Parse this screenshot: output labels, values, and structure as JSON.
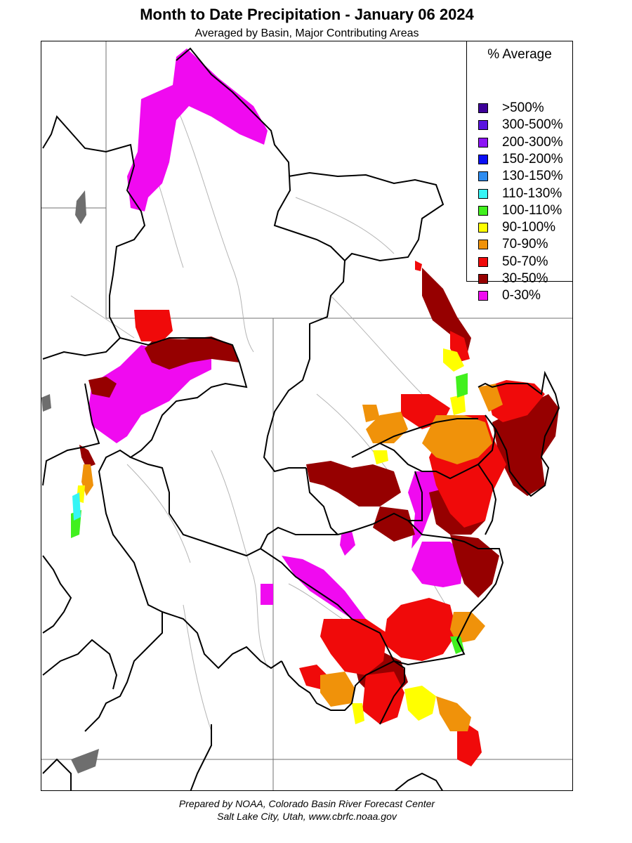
{
  "title": "Month to Date Precipitation - January 06 2024",
  "subtitle": "Averaged by Basin, Major Contributing Areas",
  "legend": {
    "title": "% Average",
    "items": [
      {
        "label": ">500%",
        "color": "#3d0099"
      },
      {
        "label": "300-500%",
        "color": "#5a14e0"
      },
      {
        "label": "200-300%",
        "color": "#8c14f5"
      },
      {
        "label": "150-200%",
        "color": "#0a0ff5"
      },
      {
        "label": "130-150%",
        "color": "#2e8cf0"
      },
      {
        "label": "110-130%",
        "color": "#36f5f5"
      },
      {
        "label": "100-110%",
        "color": "#41f01e"
      },
      {
        "label": "90-100%",
        "color": "#ffff00"
      },
      {
        "label": "70-90%",
        "color": "#f0920a"
      },
      {
        "label": "50-70%",
        "color": "#f00a0a"
      },
      {
        "label": "30-50%",
        "color": "#960000"
      },
      {
        "label": "0-30%",
        "color": "#f00af0"
      }
    ]
  },
  "footer": {
    "line1": "Prepared by NOAA, Colorado Basin River Forecast Center",
    "line2": "Salt Lake City, Utah, www.cbrfc.noaa.gov"
  }
}
